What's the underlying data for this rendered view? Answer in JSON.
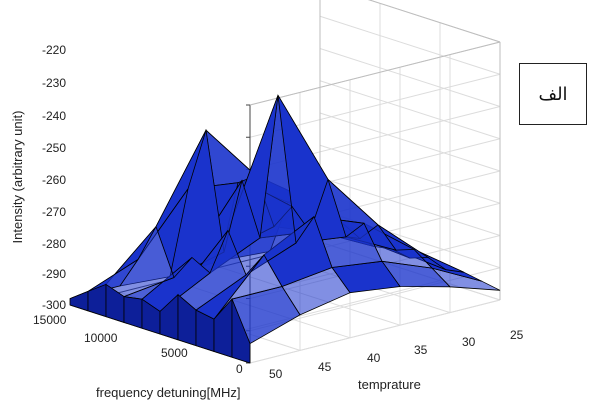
{
  "chart_data": {
    "type": "surface3d",
    "zlabel": "Intensity (arbitrary unit)",
    "xlabel": "frequency detuning[MHz]",
    "ylabel": "temprature",
    "zlim": [
      -300,
      -220
    ],
    "xlim": [
      0,
      15000
    ],
    "ylim": [
      25,
      50
    ],
    "z_ticks": [
      "-220",
      "-230",
      "-240",
      "-250",
      "-260",
      "-270",
      "-280",
      "-290",
      "-300"
    ],
    "x_ticks": [
      "15000",
      "10000",
      "5000",
      "0"
    ],
    "y_ticks": [
      "50",
      "45",
      "40",
      "35",
      "30",
      "25"
    ],
    "grid": true,
    "surface_color": "#1a33cc",
    "edge_color": "#000000",
    "series": [
      {
        "x": [
          0,
          1500,
          3000,
          4500,
          6000,
          7500,
          9000,
          10500,
          12000,
          13500,
          15000
        ],
        "temperature": 50,
        "values": [
          -298,
          -294,
          -290,
          -292,
          -291,
          -293,
          -286,
          -289,
          -290,
          -282,
          -294
        ]
      },
      {
        "x": [
          0,
          1500,
          3000,
          4500,
          6000,
          7500,
          9000,
          10500,
          12000,
          13500,
          15000
        ],
        "temperature": 45,
        "values": [
          -298,
          -288,
          -276,
          -290,
          -282,
          -285,
          -270,
          -282,
          -274,
          -282,
          -289
        ]
      },
      {
        "x": [
          0,
          1500,
          3000,
          4500,
          6000,
          7500,
          9000,
          10500,
          12000,
          13500,
          15000
        ],
        "temperature": 40,
        "values": [
          -299,
          -270,
          -250,
          -286,
          -262,
          -278,
          -232,
          -276,
          -266,
          -280,
          -286
        ]
      },
      {
        "x": [
          0,
          1500,
          3000,
          4500,
          6000,
          7500,
          9000,
          10500,
          12000,
          13500,
          15000
        ],
        "temperature": 35,
        "values": [
          -298,
          -272,
          -268,
          -282,
          -274,
          -280,
          -262,
          -278,
          -272,
          -282,
          -288
        ]
      },
      {
        "x": [
          0,
          1500,
          3000,
          4500,
          6000,
          7500,
          9000,
          10500,
          12000,
          13500,
          15000
        ],
        "temperature": 30,
        "values": [
          -299,
          -282,
          -279,
          -288,
          -283,
          -286,
          -280,
          -286,
          -284,
          -288,
          -292
        ]
      },
      {
        "x": [
          0,
          1500,
          3000,
          4500,
          6000,
          7500,
          9000,
          10500,
          12000,
          13500,
          15000
        ],
        "temperature": 25,
        "values": [
          -300,
          -295,
          -294,
          -296,
          -295,
          -296,
          -294,
          -296,
          -295,
          -296,
          -297
        ]
      }
    ]
  },
  "label_box": {
    "text": "الف"
  }
}
